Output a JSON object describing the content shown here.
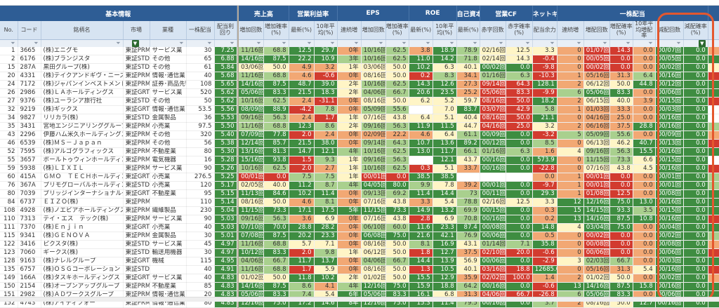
{
  "palette": {
    "G": "#3e8d41",
    "g": "#a9d08e",
    "y": "#fff5c6",
    "o": "#f2a874",
    "r": "#d23b2f",
    "w": "#ffffff"
  },
  "groups": [
    {
      "label": "基本情報",
      "span": 7
    },
    {
      "label": "",
      "span": 1,
      "sep": true
    },
    {
      "label": "売上高",
      "span": 2
    },
    {
      "label": "営業利益率",
      "span": 2
    },
    {
      "label": "EPS",
      "span": 3
    },
    {
      "label": "ROE",
      "span": 2
    },
    {
      "label": "自己資本比率",
      "span": 1
    },
    {
      "label": "営業CF",
      "span": 2
    },
    {
      "label": "ネットキャッシュ",
      "span": 1
    },
    {
      "label": "一株配当",
      "span": 6
    },
    {
      "label": "",
      "span": 1
    }
  ],
  "columns": [
    "No.",
    "コード",
    "銘柄名",
    "市場",
    "業種",
    "一株配当",
    "配当利回り",
    "",
    "増加回数",
    "増加確率(%)",
    "最新(%)",
    "10年平均(%)",
    "連続増",
    "増加回数",
    "増加確率(%)",
    "最新(%)",
    "10年平均(%)",
    "最新(%)",
    "赤字回数",
    "赤字確率(%)",
    "配当余力",
    "連続増",
    "増配回数",
    "増配確率(%)",
    "10年平均増配率",
    "減配回数",
    "減配確率(%)",
    ""
  ],
  "filter_active": [
    3,
    26
  ],
  "rows": [
    {
      "no": "1",
      "code": "3665",
      "name": "(株)エニグモ",
      "market": "東証PRM",
      "industry": "サービス業",
      "div": "30",
      "yield": "7.25",
      "v": [
        "11/16回",
        "68.8",
        "12.5",
        "29.7",
        "0年",
        "10/16回",
        "62.5",
        "3.8",
        "18.9",
        "78.9",
        "02/16回",
        "12.5",
        "3.3",
        "0",
        "01/07回",
        "14.3",
        "0.0",
        "00/07回",
        "0.0"
      ],
      "c": "ggGGoggoGgyyyorroGGo"
    },
    {
      "no": "2",
      "code": "6176",
      "name": "(株)ブランジスタ",
      "market": "東証STD",
      "industry": "その他",
      "div": "65",
      "yield": "6.88",
      "v": [
        "14/16回",
        "87.5",
        "22.2",
        "10.9",
        "3年",
        "10/16回",
        "62.5",
        "11.0",
        "14.2",
        "71.8",
        "02/14回",
        "14.3",
        "-0.4",
        "0",
        "00/05回",
        "0.0",
        "0.0",
        "00/05回",
        "0.0"
      ],
      "c": "GGGGgggGGgyyrorroGGG"
    },
    {
      "no": "15",
      "code": "287A",
      "name": "黒田グループ(株)",
      "market": "東証STD",
      "industry": "その他",
      "div": "61",
      "yield": "5.84",
      "v": [
        "03/06回",
        "50.0",
        "4.9",
        "3.2",
        "1年",
        "03/06回",
        "50.0",
        "10.2",
        "6.3",
        "40.1",
        "00/02回",
        "0.0",
        "-9.8",
        "0",
        "00/02回",
        "0.0",
        "0.0",
        "00/02回",
        "0.0"
      ],
      "c": "yyooyyyGyyGGrorroGGy"
    },
    {
      "no": "20",
      "code": "4331",
      "name": "(株)テイクアンドギヴ・ニーズ",
      "market": "東証PRM",
      "industry": "情報･通信業",
      "div": "40",
      "yield": "5.68",
      "v": [
        "11/16回",
        "68.8",
        "4.6",
        "-0.6",
        "0年",
        "08/16回",
        "50.0",
        "0.2",
        "8.3",
        "34.1",
        "01/16回",
        "6.3",
        "-10.3",
        "1",
        "05/16回",
        "31.3",
        "6.4",
        "00/16回",
        "0.0"
      ],
      "c": "ggoroyyrgoggrooogGGr"
    },
    {
      "no": "24",
      "code": "7172",
      "name": "(株)ジャパンインベストメントアド",
      "market": "東証PRM",
      "industry": "証券･商品先物取",
      "div": "108",
      "yield": "5.65",
      "v": [
        "14/16回",
        "87.5",
        "48.7",
        "39.0",
        "2年",
        "10/16回",
        "62.5",
        "14.3",
        "12.6",
        "27.3",
        "09/14回",
        "64.3",
        "128.1",
        "2",
        "06/12回",
        "50.0",
        "44.8",
        "00/12回",
        "0.0"
      ],
      "c": "GGGGyggGGorrGoyyGGGG"
    },
    {
      "no": "26",
      "code": "2986",
      "name": "(株)ＬＡホールディングス",
      "market": "東証GRT",
      "industry": "サービス業",
      "div": "520",
      "yield": "5.62",
      "v": [
        "05/06回",
        "83.3",
        "21.5",
        "18.3",
        "2年",
        "04/06回",
        "66.7",
        "20.6",
        "23.5",
        "25.2",
        "05/06回",
        "83.3",
        "-9.9",
        "6",
        "05/06回",
        "83.3",
        "0.0",
        "00/06回",
        "0.0"
      ],
      "c": "GGGGyggGGorrrgGGoGGG"
    },
    {
      "no": "27",
      "code": "9376",
      "name": "(株)ユーラシア旅行社",
      "market": "東証STD",
      "industry": "その他",
      "div": "50",
      "yield": "5.62",
      "v": [
        "10/16回",
        "62.5",
        "2.4",
        "-31.1",
        "0年",
        "08/16回",
        "50.0",
        "6.2",
        "5.2",
        "59.7",
        "08/16回",
        "50.0",
        "18.2",
        "2",
        "06/15回",
        "40.0",
        "3.9",
        "00/15回",
        "0.0"
      ],
      "c": "ggoroyyyyyrrGoyyoGGr"
    },
    {
      "no": "32",
      "code": "9219",
      "name": "(株)ギックス",
      "market": "東証GRT",
      "industry": "情報･通信業",
      "div": "53.5",
      "yield": "5.56",
      "v": [
        "08/09回",
        "88.9",
        "-4.2",
        "7.8",
        "0年",
        "05/09回",
        "55.6",
        "",
        "7.0",
        "83.7",
        "03/07回",
        "42.9",
        "5.8",
        "1",
        "01/03回",
        "33.3",
        "0.0",
        "00/03回",
        "0.0"
      ],
      "c": "GGrgoggwyGrrgooooGGw"
    },
    {
      "no": "34",
      "code": "9827",
      "name": "リリカラ(株)",
      "market": "東証STD",
      "industry": "金属製品",
      "div": "36",
      "yield": "5.53",
      "v": [
        "09/16回",
        "56.3",
        "2.4",
        "1.7",
        "1年",
        "07/16回",
        "43.8",
        "6.4",
        "5.1",
        "40.4",
        "08/16回",
        "50.0",
        "21.1",
        "0",
        "04/16回",
        "25.0",
        "0.0",
        "00/16回",
        "0.0"
      ],
      "c": "ggoryyyyyyrrGooooGGw"
    },
    {
      "no": "35",
      "code": "3431",
      "name": "宮地エンジニアリンググループ(株)",
      "market": "東証PRM",
      "industry": "小売業",
      "div": "97.5",
      "yield": "5.50",
      "v": [
        "11/16回",
        "68.8",
        "12.3",
        "8.6",
        "2年",
        "09/16回",
        "56.3",
        "11.9",
        "11.5",
        "44.7",
        "04/16回",
        "25.0",
        "3.2",
        "2",
        "06/16回",
        "37.5",
        "28.8",
        "00/16回",
        "0.0"
      ],
      "c": "ggGgyggGGyrryoooGGGg"
    },
    {
      "no": "43",
      "code": "2296",
      "name": "伊藤ハム米久ホールディングス(株)",
      "market": "東証PRM",
      "industry": "その他",
      "div": "320",
      "yield": "5.40",
      "v": [
        "07/09回",
        "77.8",
        "2.0",
        "2.4",
        "0年",
        "02/09回",
        "22.2",
        "4.6",
        "6.4",
        "61.1",
        "00/09回",
        "0.0",
        "-3.2",
        "5",
        "05/09回",
        "55.6",
        "0.0",
        "00/09回",
        "0.0"
      ],
      "c": "GGroooooygGGrgggoGGo"
    },
    {
      "no": "46",
      "code": "6539",
      "name": "(株)ＭＳ－Ｊａｐａｎ",
      "market": "東証PRM",
      "industry": "その他",
      "div": "56",
      "yield": "5.38",
      "v": [
        "12/14回",
        "85.7",
        "21.5",
        "38.0",
        "0年",
        "09/14回",
        "64.3",
        "10.7",
        "13.6",
        "89.2",
        "00/12回",
        "0.0",
        "8.5",
        "0",
        "06/13回",
        "46.2",
        "40.7",
        "00/13回",
        "0.0"
      ],
      "c": "GGGGoggGGGGGgoyyGGGr"
    },
    {
      "no": "52",
      "code": "7595",
      "name": "(株)アルゴグラフィックス",
      "market": "東証PRM",
      "industry": "不動産業",
      "div": "80",
      "yield": "5.30",
      "v": [
        "13/16回",
        "81.3",
        "14.7",
        "12.1",
        "4年",
        "10/16回",
        "62.5",
        "13.0",
        "11.7",
        "66.1",
        "01/16回",
        "6.3",
        "1.6",
        "4",
        "09/16回",
        "56.3",
        "15.5",
        "00/16回",
        "0.0"
      ],
      "c": "GGGGgggGGgggoyggGGGG"
    },
    {
      "no": "55",
      "code": "3657",
      "name": "ポールトゥウィンホールディングス",
      "market": "東証PRM",
      "industry": "電気機器",
      "div": "16",
      "yield": "5.28",
      "v": [
        "15/16回",
        "93.8",
        "1.5",
        "9.3",
        "1年",
        "09/16回",
        "56.3",
        "",
        "12.1",
        "43.7",
        "00/16回",
        "0.0",
        "573.9",
        "0",
        "11/15回",
        "73.3",
        "6.6",
        "00/15回",
        "0.0"
      ],
      "c": "GGrgyggwGyGGGoggyGGw"
    },
    {
      "no": "59",
      "code": "5938",
      "name": "(株)ＬＩＸＩＬ",
      "market": "東証PRM",
      "industry": "サービス業",
      "div": "90",
      "yield": "5.26",
      "v": [
        "10/16回",
        "62.5",
        "2.0",
        "2.7",
        "1年",
        "10/16回",
        "62.5",
        "0.3",
        "5.1",
        "33.7",
        "00/16回",
        "0.0",
        "-22.8",
        "0",
        "07/16回",
        "43.8",
        "4.5",
        "00/16回",
        "0.0"
      ],
      "c": "ggroyggryoGGroyyyGGr"
    },
    {
      "no": "60",
      "code": "415A",
      "name": "ＧＭＯ　ＴＥＣＨホールディングス",
      "market": "東証GRT",
      "industry": "小売業",
      "div": "276.5",
      "yield": "5.25",
      "v": [
        "00/01回",
        "0.0",
        "7.5",
        "7.5",
        "1年",
        "00/01回",
        "0.0",
        "38.5",
        "38.5",
        "",
        "",
        "",
        "0.0",
        "1",
        "00/01回",
        "0.0",
        "0.0",
        "00/01回",
        "0.0"
      ],
      "c": "rrggyrrGGwwwoorroGGg"
    },
    {
      "no": "76",
      "code": "367A",
      "name": "プリモグローバルホールディングス",
      "market": "東証STD",
      "industry": "小売業",
      "div": "120",
      "yield": "5.17",
      "v": [
        "02/05回",
        "40.0",
        "11.2",
        "8.7",
        "4年",
        "04/05回",
        "80.0",
        "9.9",
        "7.8",
        "39.2",
        "00/01回",
        "0.0",
        "-9.7",
        "1",
        "00/01回",
        "0.0",
        "0.0",
        "00/01回",
        "0.0"
      ],
      "c": "yyGggGGgyoGGrorroGGg"
    },
    {
      "no": "80",
      "code": "7039",
      "name": "ブリッジインターナショナルグループ",
      "market": "東証GRT",
      "industry": "不動産業",
      "div": "95",
      "yield": "5.15",
      "v": [
        "11/13回",
        "84.6",
        "10.2",
        "11.4",
        "0年",
        "09/13回",
        "69.2",
        "11.4",
        "14.4",
        "73",
        "00/11回",
        "0.0",
        "29.3",
        "1",
        "01/08回",
        "12.5",
        "0.0",
        "00/08回",
        "0.0"
      ],
      "c": "GGGGoggGGgGGGorroGGG"
    },
    {
      "no": "84",
      "code": "6737",
      "name": "ＥＩＺＯ(株)",
      "market": "東証PRM",
      "industry": "",
      "div": "110",
      "yield": "5.14",
      "v": [
        "08/16回",
        "50.0",
        "4.6",
        "8.1",
        "0年",
        "07/16回",
        "43.8",
        "3.3",
        "5.4",
        "78.8",
        "02/16回",
        "12.5",
        "3.3",
        "12",
        "12/16回",
        "75.0",
        "13.0",
        "00/16回",
        "0.0"
      ],
      "c": "yyogoyyoygyyyGGGGGGG"
    },
    {
      "no": "108",
      "code": "4928",
      "name": "(株)ノエビアホールディングス",
      "market": "東証PRM",
      "industry": "繊維製品",
      "div": "230",
      "yield": "5.04",
      "v": [
        "11/15回",
        "73.3",
        "17.1",
        "17.5",
        "5年",
        "11/15回",
        "73.3",
        "14.9",
        "13.2",
        "69.9",
        "00/15回",
        "0.0",
        "0.3",
        "15",
        "14/15回",
        "93.3",
        "3.5",
        "00/15回",
        "0.0"
      ],
      "c": "GGGGGGGGGgGGoGGGgGGG"
    },
    {
      "no": "110",
      "code": "7313",
      "name": "テイ・エス　テック(株)",
      "market": "東証PRM",
      "industry": "サービス業",
      "div": "90",
      "yield": "5.03",
      "v": [
        "09/16回",
        "56.3",
        "3.6",
        "6.9",
        "0年",
        "07/16回",
        "43.8",
        "2.8",
        "6.9",
        "70.8",
        "00/16回",
        "0.0",
        "0.2",
        "13",
        "14/16回",
        "87.5",
        "10.8",
        "00/16回",
        "0.0"
      ],
      "c": "ggoyoyyrygGGoGGGGGGr"
    },
    {
      "no": "111",
      "code": "7370",
      "name": "(株)Ｅｎｊｉｎ",
      "market": "東証GRT",
      "industry": "小売業",
      "div": "40",
      "yield": "5.03",
      "v": [
        "07/10回",
        "70.0",
        "28.8",
        "28.2",
        "0年",
        "06/10回",
        "60.0",
        "11.6",
        "23.3",
        "87.4",
        "00/08回",
        "0.0",
        "14.8",
        "4",
        "03/04回",
        "75.0",
        "0.0",
        "00/04回",
        "0.0"
      ],
      "c": "GGGGoggGGGGGGyGGoGGG"
    },
    {
      "no": "115",
      "code": "9341",
      "name": "(株)ＧＥＮＯＶＡ",
      "market": "東証PRM",
      "industry": "金属製品",
      "div": "30",
      "yield": "5.01",
      "v": [
        "07/08回",
        "87.5",
        "20.2",
        "23.3",
        "0年",
        "06/08回",
        "75.0",
        "21.6",
        "42.1",
        "76.9",
        "00/06回",
        "0.0",
        "0.5",
        "0",
        "00/02回",
        "0.0",
        "0.0",
        "00/02回",
        "0.0"
      ],
      "c": "GGGGoGGGGgGGoorroGGg"
    },
    {
      "no": "122",
      "code": "3416",
      "name": "ピクスタ(株)",
      "market": "東証STD",
      "industry": "サービス業",
      "div": "45",
      "yield": "4.97",
      "v": [
        "11/16回",
        "68.8",
        "5.7",
        "7.1",
        "0年",
        "08/16回",
        "50.0",
        "8.1",
        "16.9",
        "43.1",
        "01/14回",
        "7.1",
        "35.8",
        "0",
        "00/08回",
        "0.0",
        "0.0",
        "00/08回",
        "0.0"
      ],
      "c": "ggyyoyygGyggGorroGGo"
    },
    {
      "no": "123",
      "code": "7060",
      "name": "ギークス(株)",
      "market": "東証STD",
      "industry": "輸送用機器",
      "div": "30",
      "yield": "4.97",
      "v": [
        "10/12回",
        "83.3",
        "2.0",
        "9.8",
        "1年",
        "06/12回",
        "50.0",
        "1.8",
        "12.7",
        "37.5",
        "02/10回",
        "20.0",
        "-0.6",
        "0",
        "00/06回",
        "0.0",
        "0.0",
        "00/06回",
        "0.0"
      ],
      "c": "GGrgyyyrGorrrorroGGr"
    },
    {
      "no": "128",
      "code": "9163",
      "name": "(株)ナレルグループ",
      "market": "東証GRT",
      "industry": "機械",
      "div": "115",
      "yield": "4.95",
      "v": [
        "04/06回",
        "66.7",
        "11.7",
        "13.7",
        "0年",
        "04/06回",
        "66.7",
        "14.4",
        "13.9",
        "56.9",
        "00/06回",
        "0.0",
        "-2.9",
        "3",
        "02/03回",
        "66.7",
        "0.0",
        "00/03回",
        "0.0"
      ],
      "c": "ggGGoggGGyGGryggoGGG"
    },
    {
      "no": "135",
      "code": "6757",
      "name": "(株)ＯＳＧコーポレーション",
      "market": "東証STD",
      "industry": "",
      "div": "40",
      "yield": "4.91",
      "v": [
        "11/16回",
        "68.8",
        "1.7",
        "5.9",
        "0年",
        "08/16回",
        "50.0",
        "1.3",
        "10.5",
        "40.1",
        "03/16回",
        "18.8",
        "12685.0",
        "0",
        "05/16回",
        "31.3",
        "5.4",
        "00/16回",
        "0.0"
      ],
      "c": "ggryoyyrGyrrGoooyGGr"
    },
    {
      "no": "149",
      "code": "166A",
      "name": "(株)タスキホールディングス",
      "market": "東証GRT",
      "industry": "サービス業",
      "div": "40",
      "yield": "4.83",
      "v": [
        "01/02回",
        "50.0",
        "11.8",
        "10.2",
        "2年",
        "01/02回",
        "50.0",
        "15.5",
        "12.9",
        "35.9",
        "02/02回",
        "100.0",
        "1.4",
        "2",
        "01/02回",
        "50.0",
        "0.0",
        "00/02回",
        "0.0"
      ],
      "c": "yyGGyyyGGorrooyyoGGo"
    },
    {
      "no": "150",
      "code": "2154",
      "name": "(株)オープンアップグループ",
      "market": "東証PRM",
      "industry": "不動産業",
      "div": "85",
      "yield": "4.83",
      "v": [
        "14/16回",
        "87.5",
        "8.6",
        "4.1",
        "4年",
        "12/16回",
        "75.0",
        "15.9",
        "18.8",
        "64.2",
        "00/16回",
        "0.0",
        "-0.6",
        "13",
        "14/16回",
        "87.5",
        "15.8",
        "00/16回",
        "0.0"
      ],
      "c": "GGgogGGGGgGGrGGGGGGG"
    },
    {
      "no": "151",
      "code": "2982",
      "name": "(株)ＡＤワークスグループ",
      "market": "東証PRM",
      "industry": "情報･通信業",
      "div": "20",
      "yield": "4.83",
      "v": [
        "05/06回",
        "83.3",
        "7.4",
        "5.4",
        "6年",
        "05/06回",
        "83.3",
        "16.1",
        "6.8",
        "31.3",
        "04/06回",
        "66.7",
        "-26.8",
        "6",
        "05/06回",
        "83.3",
        "0.0",
        "00/06回",
        "0.0"
      ],
      "c": "GGgyGGGGyorrrgGGoGGG"
    },
    {
      "no": "152",
      "code": "4743",
      "name": "(株)アイティフォー",
      "market": "東証PRM",
      "industry": "情報･通信業",
      "div": "80",
      "yield": "4.83",
      "v": [
        "12/16回",
        "75.0",
        "17.2",
        "14.6",
        "8年",
        "12/16回",
        "75.0",
        "15.3",
        "11.4",
        "79.5",
        "00/16回",
        "0.0",
        "3.7",
        "2",
        "08/16回",
        "50.0",
        "12.7",
        "00/16回",
        "0.0"
      ],
      "c": "GGGGGGGGGgGGgoyyGGGG"
    }
  ]
}
